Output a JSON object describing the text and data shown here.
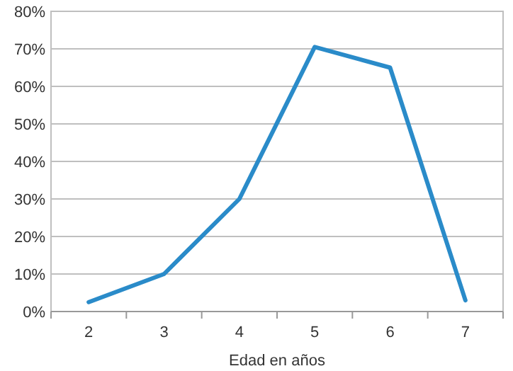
{
  "chart_data": {
    "type": "line",
    "xlabel": "Edad en años",
    "categories": [
      "2",
      "3",
      "4",
      "5",
      "6",
      "7"
    ],
    "series": [
      {
        "color": "#2a8bc9",
        "values": [
          2.5,
          10,
          30,
          70.5,
          65,
          3
        ]
      }
    ],
    "ylim": [
      0,
      80
    ],
    "yticks": [
      {
        "value": 0,
        "label": "0%"
      },
      {
        "value": 10,
        "label": "10%"
      },
      {
        "value": 20,
        "label": "20%"
      },
      {
        "value": 30,
        "label": "30%"
      },
      {
        "value": 40,
        "label": "40%"
      },
      {
        "value": 50,
        "label": "50%"
      },
      {
        "value": 60,
        "label": "60%"
      },
      {
        "value": 70,
        "label": "70%"
      },
      {
        "value": 80,
        "label": "80%"
      }
    ],
    "grid": "y",
    "marker": "none",
    "line_style": "solid"
  }
}
